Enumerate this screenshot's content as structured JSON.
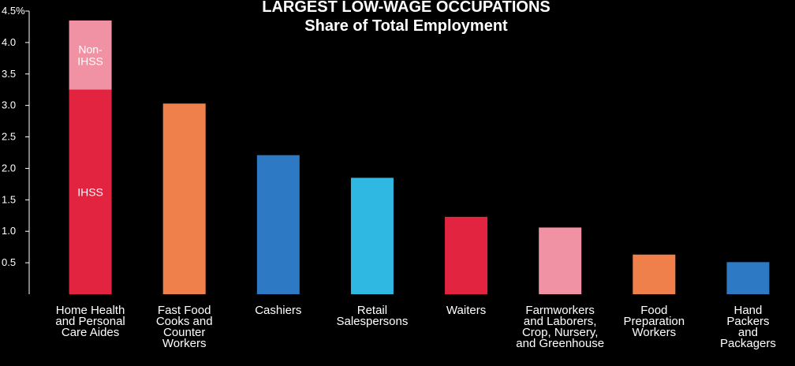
{
  "chart_data": {
    "type": "bar",
    "stacked": true,
    "title_lines": [
      "LARGEST LOW-WAGE OCCUPATIONS",
      "Share of Total Employment"
    ],
    "categories": [
      [
        "Home Health",
        "and Personal",
        "Care Aides"
      ],
      [
        "Fast Food",
        "Cooks and",
        "Counter",
        "Workers"
      ],
      [
        "Cashiers"
      ],
      [
        "Retail",
        "Salespersons"
      ],
      [
        "Waiters"
      ],
      [
        "Farmworkers",
        "and Laborers,",
        "Crop, Nursery,",
        "and Greenhouse"
      ],
      [
        "Food",
        "Preparation",
        "Workers"
      ],
      [
        "Hand",
        "Packers",
        "and",
        "Packagers"
      ]
    ],
    "values": [
      4.35,
      3.03,
      2.21,
      1.85,
      1.23,
      1.06,
      0.63,
      0.51
    ],
    "bar_colors": [
      "#e22440",
      "#ef7f4b",
      "#2d79c4",
      "#2fb8e2",
      "#e22440",
      "#f192a4",
      "#ef7f4b",
      "#2d79c4"
    ],
    "stack": {
      "category_index": 0,
      "segments": [
        {
          "label": "IHSS",
          "value": 3.25,
          "color": "#e22440"
        },
        {
          "label_lines": [
            "Non-",
            "IHSS"
          ],
          "value": 1.1,
          "color": "#f192a4"
        }
      ]
    },
    "y_ticks": [
      {
        "value": 4.5,
        "label": "4.5%"
      },
      {
        "value": 4.0,
        "label": "4.0"
      },
      {
        "value": 3.5,
        "label": "3.5"
      },
      {
        "value": 3.0,
        "label": "3.0"
      },
      {
        "value": 2.5,
        "label": "2.5"
      },
      {
        "value": 2.0,
        "label": "2.0"
      },
      {
        "value": 1.5,
        "label": "1.5"
      },
      {
        "value": 1.0,
        "label": "1.0"
      },
      {
        "value": 0.5,
        "label": "0.5"
      }
    ],
    "ylim": [
      0,
      4.5
    ],
    "xlabel": "",
    "ylabel": "",
    "grid": false,
    "legend": "none"
  }
}
